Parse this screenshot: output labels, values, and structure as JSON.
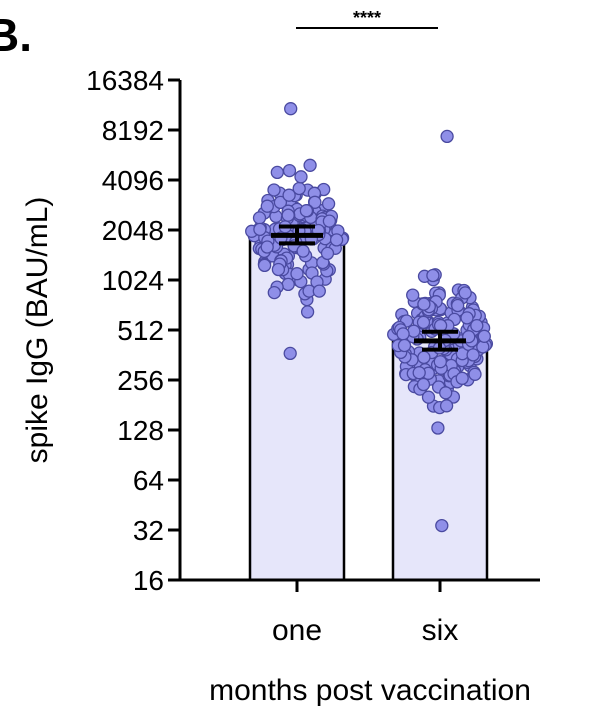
{
  "panel_label": "B.",
  "chart_data": {
    "type": "bar",
    "categories": [
      "one",
      "six"
    ],
    "xlabel": "months post vaccination",
    "ylabel": "spike IgG (BAU/mL)",
    "yscale": "log2",
    "ylim": [
      16,
      16384
    ],
    "yticks": [
      "16",
      "32",
      "64",
      "128",
      "256",
      "512",
      "1024",
      "2048",
      "4096",
      "8192",
      "16384"
    ],
    "values": [
      1900,
      440
    ],
    "error_bars": [
      {
        "category": "one",
        "low": 1700,
        "high": 2150
      },
      {
        "category": "six",
        "low": 390,
        "high": 500
      }
    ],
    "points": [
      {
        "category": "one",
        "min": 370,
        "max": 11000,
        "n": 150
      },
      {
        "category": "six",
        "min": 34,
        "max": 7500,
        "n": 200
      }
    ],
    "significance": {
      "label": "****",
      "between": [
        "one",
        "six"
      ]
    },
    "colors": {
      "bar_fill": "#e6e6fa",
      "point_fill": "#8f8fe8",
      "point_stroke": "#4a4aa0",
      "axis": "#000000"
    },
    "grid": false,
    "legend": "none"
  }
}
